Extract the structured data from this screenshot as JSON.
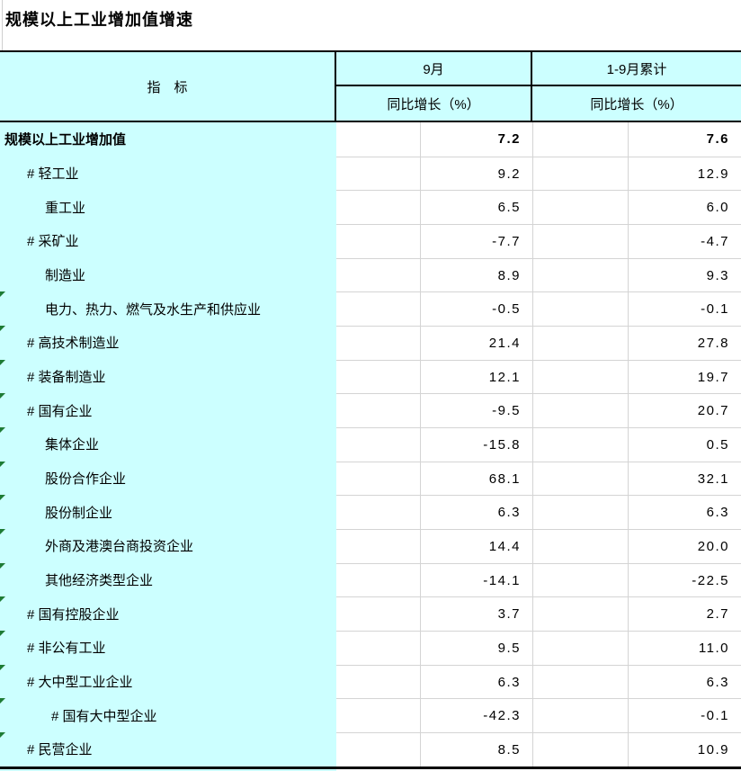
{
  "title": "规模以上工业增加值增速",
  "colors": {
    "cell_cyan": "#ccffff",
    "grid_line": "#d4d4d4",
    "frame_black": "#000000",
    "marker_green": "#1e7b34",
    "background": "#ffffff"
  },
  "table": {
    "header": {
      "indicator": "指　标",
      "col_september": "9月",
      "col_cumulative": "1-9月累计",
      "sub_yoy": "同比增长（%）"
    },
    "rows": [
      {
        "label": "规模以上工业增加值",
        "indent": 0,
        "bold": true,
        "marker": false,
        "september": "7.2",
        "cumulative": "7.6"
      },
      {
        "label": "# 轻工业",
        "indent": 1,
        "bold": false,
        "marker": false,
        "september": "9.2",
        "cumulative": "12.9"
      },
      {
        "label": "重工业",
        "indent": 2,
        "bold": false,
        "marker": false,
        "september": "6.5",
        "cumulative": "6.0"
      },
      {
        "label": "# 采矿业",
        "indent": 1,
        "bold": false,
        "marker": false,
        "september": "-7.7",
        "cumulative": "-4.7"
      },
      {
        "label": "制造业",
        "indent": 2,
        "bold": false,
        "marker": false,
        "september": "8.9",
        "cumulative": "9.3"
      },
      {
        "label": "电力、热力、燃气及水生产和供应业",
        "indent": 2,
        "bold": false,
        "marker": true,
        "september": "-0.5",
        "cumulative": "-0.1"
      },
      {
        "label": "# 高技术制造业",
        "indent": 1,
        "bold": false,
        "marker": true,
        "september": "21.4",
        "cumulative": "27.8"
      },
      {
        "label": "# 装备制造业",
        "indent": 1,
        "bold": false,
        "marker": true,
        "september": "12.1",
        "cumulative": "19.7"
      },
      {
        "label": "# 国有企业",
        "indent": 1,
        "bold": false,
        "marker": true,
        "september": "-9.5",
        "cumulative": "20.7"
      },
      {
        "label": "集体企业",
        "indent": 2,
        "bold": false,
        "marker": true,
        "september": "-15.8",
        "cumulative": "0.5"
      },
      {
        "label": "股份合作企业",
        "indent": 2,
        "bold": false,
        "marker": true,
        "september": "68.1",
        "cumulative": "32.1"
      },
      {
        "label": "股份制企业",
        "indent": 2,
        "bold": false,
        "marker": true,
        "september": "6.3",
        "cumulative": "6.3"
      },
      {
        "label": "外商及港澳台商投资企业",
        "indent": 2,
        "bold": false,
        "marker": true,
        "september": "14.4",
        "cumulative": "20.0"
      },
      {
        "label": "其他经济类型企业",
        "indent": 2,
        "bold": false,
        "marker": true,
        "september": "-14.1",
        "cumulative": "-22.5"
      },
      {
        "label": "# 国有控股企业",
        "indent": 1,
        "bold": false,
        "marker": true,
        "september": "3.7",
        "cumulative": "2.7"
      },
      {
        "label": "# 非公有工业",
        "indent": 1,
        "bold": false,
        "marker": true,
        "september": "9.5",
        "cumulative": "11.0"
      },
      {
        "label": "# 大中型工业企业",
        "indent": 1,
        "bold": false,
        "marker": true,
        "september": "6.3",
        "cumulative": "6.3"
      },
      {
        "label": "# 国有大中型企业",
        "indent": 3,
        "bold": false,
        "marker": true,
        "september": "-42.3",
        "cumulative": "-0.1"
      },
      {
        "label": "# 民营企业",
        "indent": 1,
        "bold": false,
        "marker": true,
        "september": "8.5",
        "cumulative": "10.9"
      }
    ]
  }
}
